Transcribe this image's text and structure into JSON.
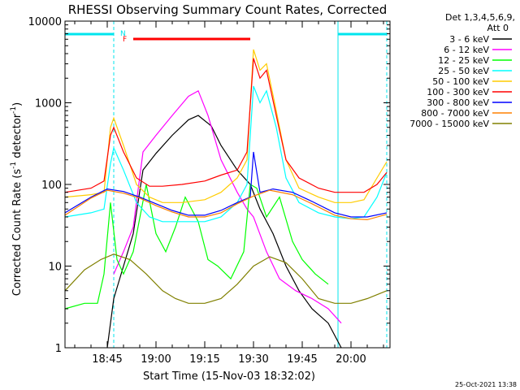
{
  "chart_data": {
    "type": "line",
    "title": "RHESSI Observing Summary Count Rates, Corrected",
    "xlabel": "Start Time (15-Nov-03 18:32:02)",
    "ylabel": "Corrected Count Rate (s⁻¹ detector⁻¹)",
    "ylabel_main": "Corrected Count Rate (s",
    "ylabel_exp1": "-1",
    "ylabel_mid": " detector",
    "ylabel_exp2": "-1",
    "ylabel_end": ")",
    "yscale": "log",
    "ylim": [
      1,
      10000
    ],
    "xlim": [
      "18:32",
      "20:12"
    ],
    "xticks": [
      "18:45",
      "19:00",
      "19:15",
      "19:30",
      "19:45",
      "20:00"
    ],
    "yticks": [
      "1",
      "10",
      "100",
      "1000",
      "10000"
    ],
    "legend_title": "Det 1,3,4,5,6,9,",
    "legend_subtitle": "Att 0",
    "legend_position": "right",
    "flag_labels": {
      "N": "N",
      "F": "F"
    },
    "footer_date": "25-Oct-2021 13:38",
    "flags": {
      "night": [
        [
          "18:32",
          "18:47"
        ],
        [
          "19:56",
          "20:11"
        ]
      ],
      "flare": [
        "18:53",
        "19:29"
      ]
    },
    "series": [
      {
        "name": "3 - 6 keV",
        "color": "#000000",
        "points": [
          [
            "18:45",
            1
          ],
          [
            "18:47",
            4
          ],
          [
            "18:50",
            10
          ],
          [
            "18:53",
            25
          ],
          [
            "18:56",
            150
          ],
          [
            "19:00",
            240
          ],
          [
            "19:05",
            400
          ],
          [
            "19:10",
            620
          ],
          [
            "19:13",
            700
          ],
          [
            "19:17",
            520
          ],
          [
            "19:20",
            300
          ],
          [
            "19:25",
            150
          ],
          [
            "19:29",
            100
          ],
          [
            "19:32",
            50
          ],
          [
            "19:36",
            25
          ],
          [
            "19:40",
            10
          ],
          [
            "19:44",
            5
          ],
          [
            "19:48",
            3
          ],
          [
            "19:53",
            2
          ],
          [
            "19:57",
            1
          ]
        ]
      },
      {
        "name": "6 - 12 keV",
        "color": "#ff00ff",
        "points": [
          [
            "18:47",
            8
          ],
          [
            "18:50",
            15
          ],
          [
            "18:53",
            30
          ],
          [
            "18:56",
            250
          ],
          [
            "19:00",
            400
          ],
          [
            "19:05",
            700
          ],
          [
            "19:10",
            1200
          ],
          [
            "19:13",
            1400
          ],
          [
            "19:16",
            700
          ],
          [
            "19:20",
            200
          ],
          [
            "19:25",
            80
          ],
          [
            "19:28",
            50
          ],
          [
            "19:30",
            40
          ],
          [
            "19:34",
            15
          ],
          [
            "19:38",
            7
          ],
          [
            "19:43",
            5
          ],
          [
            "19:48",
            4
          ],
          [
            "19:53",
            3
          ],
          [
            "19:57",
            2
          ]
        ]
      },
      {
        "name": "12 - 25 keV",
        "color": "#00ff00",
        "points": [
          [
            "18:32",
            3
          ],
          [
            "18:38",
            3.5
          ],
          [
            "18:42",
            3.5
          ],
          [
            "18:44",
            8
          ],
          [
            "18:46",
            60
          ],
          [
            "18:48",
            12
          ],
          [
            "18:50",
            8
          ],
          [
            "18:53",
            15
          ],
          [
            "18:57",
            100
          ],
          [
            "19:00",
            25
          ],
          [
            "19:03",
            15
          ],
          [
            "19:06",
            30
          ],
          [
            "19:09",
            70
          ],
          [
            "19:13",
            35
          ],
          [
            "19:16",
            12
          ],
          [
            "19:19",
            10
          ],
          [
            "19:23",
            7
          ],
          [
            "19:27",
            15
          ],
          [
            "19:29",
            100
          ],
          [
            "19:31",
            90
          ],
          [
            "19:34",
            40
          ],
          [
            "19:38",
            70
          ],
          [
            "19:42",
            20
          ],
          [
            "19:45",
            12
          ],
          [
            "19:49",
            8
          ],
          [
            "19:53",
            6
          ]
        ]
      },
      {
        "name": "25 - 50 keV",
        "color": "#00ffff",
        "points": [
          [
            "18:32",
            40
          ],
          [
            "18:40",
            45
          ],
          [
            "18:44",
            50
          ],
          [
            "18:46",
            180
          ],
          [
            "18:47",
            280
          ],
          [
            "18:50",
            150
          ],
          [
            "18:54",
            60
          ],
          [
            "18:58",
            40
          ],
          [
            "19:02",
            35
          ],
          [
            "19:08",
            35
          ],
          [
            "19:15",
            35
          ],
          [
            "19:20",
            40
          ],
          [
            "19:25",
            60
          ],
          [
            "19:28",
            100
          ],
          [
            "19:30",
            1600
          ],
          [
            "19:32",
            1000
          ],
          [
            "19:34",
            1400
          ],
          [
            "19:37",
            500
          ],
          [
            "19:40",
            120
          ],
          [
            "19:44",
            60
          ],
          [
            "19:50",
            45
          ],
          [
            "19:55",
            40
          ],
          [
            "20:00",
            38
          ],
          [
            "20:04",
            40
          ],
          [
            "20:08",
            70
          ],
          [
            "20:11",
            140
          ]
        ]
      },
      {
        "name": "50 - 100 keV",
        "color": "#ffcc00",
        "points": [
          [
            "18:32",
            70
          ],
          [
            "18:40",
            75
          ],
          [
            "18:44",
            80
          ],
          [
            "18:46",
            500
          ],
          [
            "18:47",
            650
          ],
          [
            "18:50",
            300
          ],
          [
            "18:54",
            100
          ],
          [
            "18:58",
            70
          ],
          [
            "19:02",
            60
          ],
          [
            "19:08",
            60
          ],
          [
            "19:15",
            65
          ],
          [
            "19:20",
            80
          ],
          [
            "19:25",
            120
          ],
          [
            "19:28",
            200
          ],
          [
            "19:30",
            4500
          ],
          [
            "19:32",
            2500
          ],
          [
            "19:34",
            3000
          ],
          [
            "19:37",
            800
          ],
          [
            "19:40",
            200
          ],
          [
            "19:44",
            90
          ],
          [
            "19:50",
            70
          ],
          [
            "19:55",
            60
          ],
          [
            "20:00",
            60
          ],
          [
            "20:04",
            65
          ],
          [
            "20:08",
            120
          ],
          [
            "20:11",
            190
          ]
        ]
      },
      {
        "name": "100 - 300 keV",
        "color": "#ff0000",
        "points": [
          [
            "18:32",
            80
          ],
          [
            "18:40",
            90
          ],
          [
            "18:44",
            110
          ],
          [
            "18:46",
            400
          ],
          [
            "18:47",
            500
          ],
          [
            "18:50",
            250
          ],
          [
            "18:54",
            120
          ],
          [
            "18:58",
            95
          ],
          [
            "19:02",
            95
          ],
          [
            "19:08",
            100
          ],
          [
            "19:15",
            110
          ],
          [
            "19:20",
            130
          ],
          [
            "19:25",
            150
          ],
          [
            "19:28",
            250
          ],
          [
            "19:30",
            3500
          ],
          [
            "19:32",
            2000
          ],
          [
            "19:34",
            2500
          ],
          [
            "19:37",
            700
          ],
          [
            "19:40",
            200
          ],
          [
            "19:44",
            120
          ],
          [
            "19:50",
            90
          ],
          [
            "19:55",
            80
          ],
          [
            "20:00",
            80
          ],
          [
            "20:04",
            80
          ],
          [
            "20:08",
            100
          ],
          [
            "20:11",
            140
          ]
        ]
      },
      {
        "name": "300 - 800 keV",
        "color": "#0000ff",
        "points": [
          [
            "18:32",
            45
          ],
          [
            "18:40",
            70
          ],
          [
            "18:45",
            88
          ],
          [
            "18:50",
            82
          ],
          [
            "18:55",
            70
          ],
          [
            "19:00",
            58
          ],
          [
            "19:05",
            48
          ],
          [
            "19:10",
            42
          ],
          [
            "19:15",
            42
          ],
          [
            "19:20",
            48
          ],
          [
            "19:25",
            60
          ],
          [
            "19:29",
            70
          ],
          [
            "19:30",
            250
          ],
          [
            "19:32",
            80
          ],
          [
            "19:36",
            88
          ],
          [
            "19:42",
            80
          ],
          [
            "19:48",
            62
          ],
          [
            "19:55",
            45
          ],
          [
            "20:00",
            40
          ],
          [
            "20:05",
            40
          ],
          [
            "20:11",
            45
          ]
        ]
      },
      {
        "name": "800 - 7000 keV",
        "color": "#ff8000",
        "points": [
          [
            "18:32",
            42
          ],
          [
            "18:40",
            68
          ],
          [
            "18:45",
            85
          ],
          [
            "18:50",
            78
          ],
          [
            "18:55",
            68
          ],
          [
            "19:00",
            55
          ],
          [
            "19:05",
            46
          ],
          [
            "19:10",
            40
          ],
          [
            "19:15",
            40
          ],
          [
            "19:20",
            45
          ],
          [
            "19:25",
            58
          ],
          [
            "19:30",
            72
          ],
          [
            "19:35",
            85
          ],
          [
            "19:42",
            75
          ],
          [
            "19:48",
            58
          ],
          [
            "19:55",
            42
          ],
          [
            "20:00",
            38
          ],
          [
            "20:05",
            37
          ],
          [
            "20:11",
            43
          ]
        ]
      },
      {
        "name": "7000 - 15000 keV",
        "color": "#808000",
        "points": [
          [
            "18:32",
            5
          ],
          [
            "18:38",
            9
          ],
          [
            "18:43",
            12
          ],
          [
            "18:47",
            14
          ],
          [
            "18:52",
            12
          ],
          [
            "18:57",
            8
          ],
          [
            "19:02",
            5
          ],
          [
            "19:06",
            4
          ],
          [
            "19:10",
            3.5
          ],
          [
            "19:15",
            3.5
          ],
          [
            "19:20",
            4
          ],
          [
            "19:25",
            6
          ],
          [
            "19:30",
            10
          ],
          [
            "19:35",
            13
          ],
          [
            "19:40",
            11
          ],
          [
            "19:45",
            7
          ],
          [
            "19:50",
            4
          ],
          [
            "19:55",
            3.5
          ],
          [
            "20:00",
            3.5
          ],
          [
            "20:05",
            4
          ],
          [
            "20:11",
            5
          ]
        ]
      }
    ]
  }
}
